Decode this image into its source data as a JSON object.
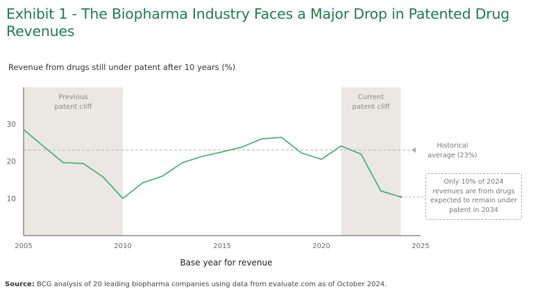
{
  "header": {
    "title": "Exhibit 1 - The Biopharma Industry Faces a Major Drop in Patented Drug Revenues",
    "subtitle": "Revenue from drugs still under patent after 10 years (%)"
  },
  "chart_data": {
    "type": "line",
    "title": "Exhibit 1 - The Biopharma Industry Faces a Major Drop in Patented Drug Revenues",
    "ylabel": "Revenue from drugs still under patent after 10 years (%)",
    "xlabel": "Base year for revenue",
    "xlim": [
      2005,
      2025
    ],
    "ylim": [
      0,
      40
    ],
    "x_ticks": [
      "2005",
      "2010",
      "2015",
      "2020",
      "2025"
    ],
    "y_ticks": [
      "10",
      "20",
      "30"
    ],
    "grid": false,
    "series": [
      {
        "name": "Revenue under patent after 10 years",
        "color": "#3daa6e",
        "x": [
          2005,
          2006,
          2007,
          2008,
          2009,
          2010,
          2011,
          2012,
          2013,
          2014,
          2015,
          2016,
          2017,
          2018,
          2019,
          2020,
          2021,
          2022,
          2023,
          2024
        ],
        "values": [
          28.5,
          24.0,
          19.6,
          19.4,
          15.8,
          10.0,
          14.2,
          16.0,
          19.6,
          21.3,
          22.5,
          23.8,
          26.0,
          26.4,
          22.2,
          20.5,
          24.1,
          21.9,
          12.0,
          10.4
        ]
      }
    ],
    "reference_line": {
      "label": "Historical average (23%)",
      "value": 23
    },
    "shaded_regions": [
      {
        "label": "Previous patent cliff",
        "from": 2005,
        "to": 2010
      },
      {
        "label": "Current patent cliff",
        "from": 2021,
        "to": 2024
      }
    ],
    "annotations": [
      {
        "text": "Only 10% of 2024 revenues are from drugs expected to remain under patent in 2034",
        "x": 2024,
        "y": 10.4
      }
    ]
  },
  "labels": {
    "previous_cliff": [
      "Previous",
      "patent cliff"
    ],
    "current_cliff": [
      "Current",
      "patent cliff"
    ],
    "historical": [
      "Historical",
      "average (23%)"
    ],
    "callout": [
      "Only 10% of 2024",
      "revenues are from drugs",
      "expected to remain under",
      "patent in 2034"
    ]
  },
  "footer": {
    "source_label": "Source:",
    "source_text": " BCG analysis of 20 leading biopharma companies using data from evaluate.com as of October 2024."
  },
  "colors": {
    "title": "#1e7a52",
    "line": "#3daa6e",
    "shade": "#ebe8e3",
    "reference": "#b5b5b5"
  }
}
